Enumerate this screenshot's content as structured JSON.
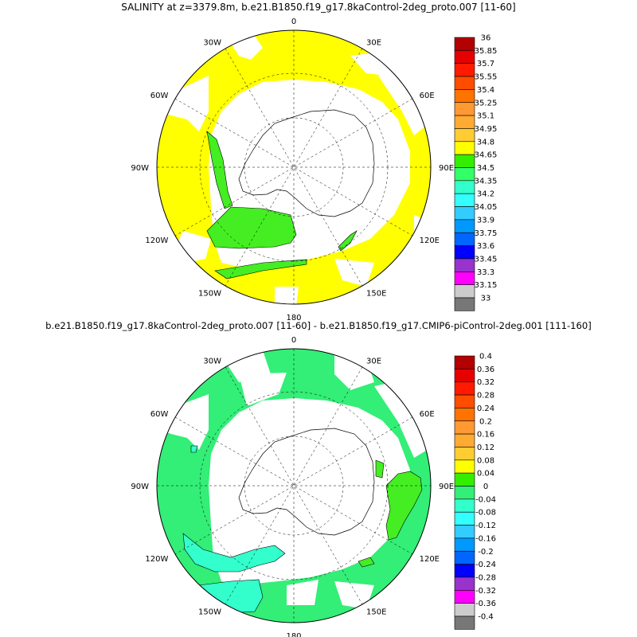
{
  "panels": [
    {
      "title": "SALINITY at z=3379.8m, b.e21.B1850.f19_g17.8kaControl-2deg_proto.007 [11-60]",
      "lon_labels": [
        "0",
        "30E",
        "60E",
        "90E",
        "120E",
        "150E",
        "180",
        "150W",
        "120W",
        "90W",
        "60W",
        "30W"
      ],
      "colorbar": {
        "labels": [
          "36",
          "35.85",
          "35.7",
          "35.55",
          "35.4",
          "35.25",
          "35.1",
          "34.95",
          "34.8",
          "34.65",
          "34.5",
          "34.35",
          "34.2",
          "34.05",
          "33.9",
          "33.75",
          "33.6",
          "33.45",
          "33.3",
          "33.15",
          "33"
        ],
        "colors": [
          "#b30000",
          "#e60000",
          "#ff1a00",
          "#ff4d00",
          "#ff7300",
          "#ff9933",
          "#ffaa33",
          "#ffcc33",
          "#ffff00",
          "#33ee00",
          "#33ff66",
          "#33ffcc",
          "#33ffff",
          "#33ccff",
          "#0099ff",
          "#0066ff",
          "#0000ff",
          "#9933cc",
          "#ff00ff",
          "#cccccc",
          "#777777"
        ]
      },
      "dominant_color": "#ffff00",
      "secondary_color": "#44ee22"
    },
    {
      "title": "b.e21.B1850.f19_g17.8kaControl-2deg_proto.007 [11-60] - b.e21.B1850.f19_g17.CMIP6-piControl-2deg.001 [111-160]",
      "lon_labels": [
        "0",
        "30E",
        "60E",
        "90E",
        "120E",
        "150E",
        "180",
        "150W",
        "120W",
        "90W",
        "60W",
        "30W"
      ],
      "colorbar": {
        "labels": [
          "0.4",
          "0.36",
          "0.32",
          "0.28",
          "0.24",
          "0.2",
          "0.16",
          "0.12",
          "0.08",
          "0.04",
          "0",
          "-0.04",
          "-0.08",
          "-0.12",
          "-0.16",
          "-0.2",
          "-0.24",
          "-0.28",
          "-0.32",
          "-0.36",
          "-0.4"
        ],
        "colors": [
          "#b30000",
          "#e60000",
          "#ff1a00",
          "#ff4d00",
          "#ff7300",
          "#ff9933",
          "#ffaa33",
          "#ffcc33",
          "#ffff00",
          "#33ee00",
          "#33ee77",
          "#33ffcc",
          "#33ffff",
          "#33ccff",
          "#0099ff",
          "#0066ff",
          "#0000ff",
          "#9933cc",
          "#ff00ff",
          "#cccccc",
          "#777777"
        ]
      },
      "dominant_color": "#33ee77",
      "secondary_color": "#44ee22",
      "tertiary_color": "#33ffcc"
    }
  ]
}
